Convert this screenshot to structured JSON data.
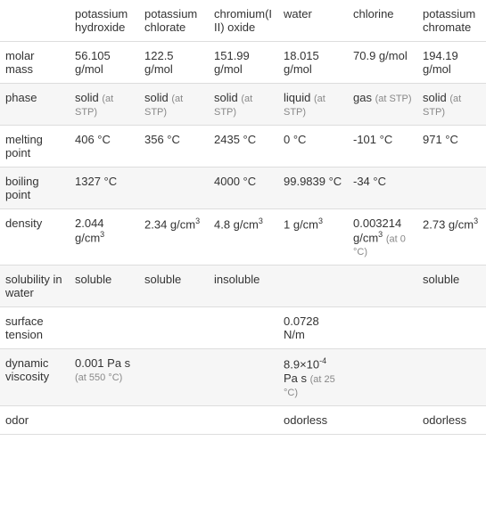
{
  "table": {
    "columns": [
      "",
      "potassium hydroxide",
      "potassium chlorate",
      "chromium(III) oxide",
      "water",
      "chlorine",
      "potassium chromate"
    ],
    "rows": [
      {
        "label": "molar mass",
        "cells": [
          {
            "value": "56.105 g/mol"
          },
          {
            "value": "122.5 g/mol"
          },
          {
            "value": "151.99 g/mol"
          },
          {
            "value": "18.015 g/mol"
          },
          {
            "value": "70.9 g/mol"
          },
          {
            "value": "194.19 g/mol"
          }
        ]
      },
      {
        "label": "phase",
        "cells": [
          {
            "value": "solid",
            "note": "(at STP)"
          },
          {
            "value": "solid",
            "note": "(at STP)"
          },
          {
            "value": "solid",
            "note": "(at STP)"
          },
          {
            "value": "liquid",
            "note": "(at STP)"
          },
          {
            "value": "gas",
            "note": "(at STP)"
          },
          {
            "value": "solid",
            "note": "(at STP)"
          }
        ]
      },
      {
        "label": "melting point",
        "cells": [
          {
            "value": "406 °C"
          },
          {
            "value": "356 °C"
          },
          {
            "value": "2435 °C"
          },
          {
            "value": "0 °C"
          },
          {
            "value": "-101 °C"
          },
          {
            "value": "971 °C"
          }
        ]
      },
      {
        "label": "boiling point",
        "cells": [
          {
            "value": "1327 °C"
          },
          {
            "value": ""
          },
          {
            "value": "4000 °C"
          },
          {
            "value": "99.9839 °C"
          },
          {
            "value": "-34 °C"
          },
          {
            "value": ""
          }
        ]
      },
      {
        "label": "density",
        "cells": [
          {
            "value": "2.044 g/cm",
            "sup": "3"
          },
          {
            "value": "2.34 g/cm",
            "sup": "3"
          },
          {
            "value": "4.8 g/cm",
            "sup": "3"
          },
          {
            "value": "1 g/cm",
            "sup": "3"
          },
          {
            "value": "0.003214 g/cm",
            "sup": "3",
            "note": "(at 0 °C)"
          },
          {
            "value": "2.73 g/cm",
            "sup": "3"
          }
        ]
      },
      {
        "label": "solubility in water",
        "cells": [
          {
            "value": "soluble"
          },
          {
            "value": "soluble"
          },
          {
            "value": "insoluble"
          },
          {
            "value": ""
          },
          {
            "value": ""
          },
          {
            "value": "soluble"
          }
        ]
      },
      {
        "label": "surface tension",
        "cells": [
          {
            "value": ""
          },
          {
            "value": ""
          },
          {
            "value": ""
          },
          {
            "value": "0.0728 N/m"
          },
          {
            "value": ""
          },
          {
            "value": ""
          }
        ]
      },
      {
        "label": "dynamic viscosity",
        "cells": [
          {
            "value": "0.001 Pa s",
            "note": "(at 550 °C)"
          },
          {
            "value": ""
          },
          {
            "value": ""
          },
          {
            "value": "8.9×10",
            "sup2": "-4",
            "after": " Pa s",
            "note": "(at 25 °C)"
          },
          {
            "value": ""
          },
          {
            "value": ""
          }
        ]
      },
      {
        "label": "odor",
        "cells": [
          {
            "value": ""
          },
          {
            "value": ""
          },
          {
            "value": ""
          },
          {
            "value": "odorless"
          },
          {
            "value": ""
          },
          {
            "value": "odorless"
          }
        ]
      }
    ],
    "styling": {
      "odd_row_bg": "#f6f6f6",
      "even_row_bg": "#ffffff",
      "border_color": "#dddddd",
      "text_color": "#333333",
      "subnote_color": "#888888",
      "font_size_main": 13,
      "font_size_note": 11
    }
  }
}
